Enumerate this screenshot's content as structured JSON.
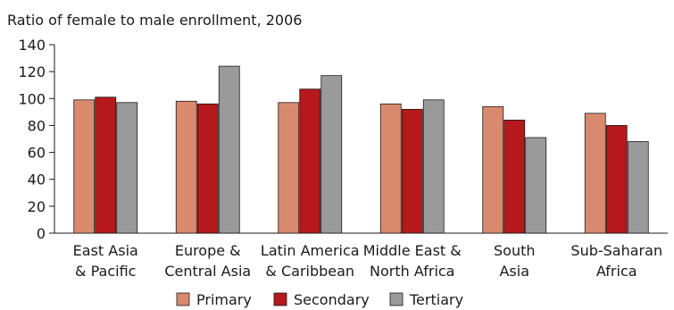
{
  "chart_data": {
    "type": "bar",
    "title": "Ratio of female to male enrollment, 2006",
    "xlabel": "",
    "ylabel": "",
    "ylim": [
      0,
      140
    ],
    "yticks": [
      0,
      20,
      40,
      60,
      80,
      100,
      120,
      140
    ],
    "grid": false,
    "legend_position": "bottom",
    "categories": [
      [
        "East Asia",
        "& Pacific"
      ],
      [
        "Europe &",
        "Central Asia"
      ],
      [
        "Latin America",
        "& Caribbean"
      ],
      [
        "Middle East &",
        "North Africa"
      ],
      [
        "South",
        "Asia"
      ],
      [
        "Sub-Saharan",
        "Africa"
      ]
    ],
    "series": [
      {
        "name": "Primary",
        "color": "#d98a6e",
        "values": [
          99,
          98,
          97,
          96,
          94,
          89
        ]
      },
      {
        "name": "Secondary",
        "color": "#b5191c",
        "values": [
          101,
          96,
          107,
          92,
          84,
          80
        ]
      },
      {
        "name": "Tertiary",
        "color": "#9b9a9b",
        "values": [
          97,
          124,
          117,
          99,
          71,
          68
        ]
      }
    ]
  }
}
